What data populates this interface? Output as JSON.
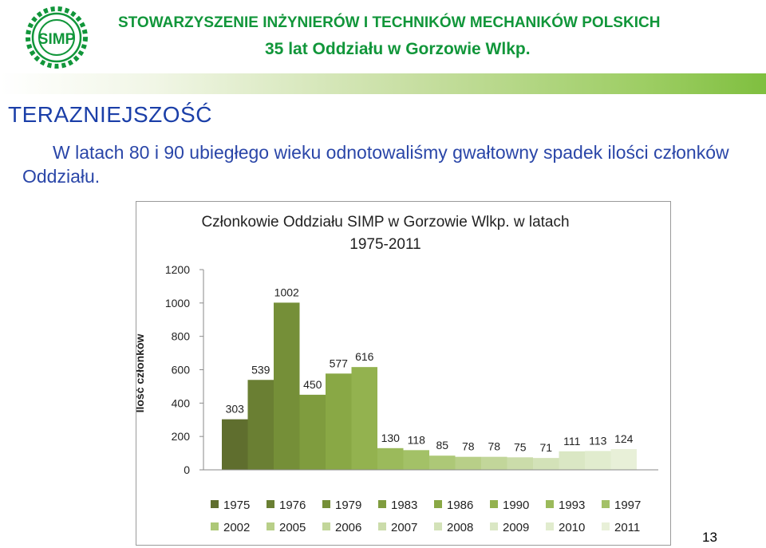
{
  "header": {
    "org_name": "STOWARZYSZENIE INŻYNIERÓW I TECHNIKÓW MECHANIKÓW POLSKICH",
    "subtitle": "35 lat Oddziału w Gorzowie Wlkp.",
    "logo_text": "SIMP"
  },
  "section_title": "TERAZNIEJSZOŚĆ",
  "intro_text": "W latach 80 i 90 ubiegłego wieku odnotowaliśmy gwałtowny spadek ilości członków Oddziału.",
  "page_number": "13",
  "colors": {
    "header_green": "#11963a",
    "title_blue": "#1b3fa8"
  },
  "chart_data": {
    "type": "bar",
    "title": "Członkowie Oddziału SIMP w Gorzowie Wlkp. w latach 1975-2011",
    "xlabel": "",
    "ylabel": "Ilość członków",
    "ylim": [
      0,
      1200
    ],
    "yticks": [
      0,
      200,
      400,
      600,
      800,
      1000,
      1200
    ],
    "legend_position": "bottom",
    "categories": [
      "1975",
      "1976",
      "1979",
      "1983",
      "1986",
      "1990",
      "1993",
      "1997",
      "2002",
      "2005",
      "2006",
      "2007",
      "2008",
      "2009",
      "2010",
      "2011"
    ],
    "values": [
      303,
      539,
      1002,
      450,
      577,
      616,
      130,
      118,
      85,
      78,
      78,
      75,
      71,
      111,
      113,
      124
    ],
    "colors": [
      "#5f6e2e",
      "#6a7f33",
      "#758f38",
      "#7f9c3e",
      "#89a845",
      "#93b24f",
      "#9bba5b",
      "#a3c167",
      "#adc877",
      "#b8cf88",
      "#c2d69a",
      "#cbdcaa",
      "#d3e2b8",
      "#dae7c4",
      "#e1ecce",
      "#e8f0d8"
    ]
  }
}
